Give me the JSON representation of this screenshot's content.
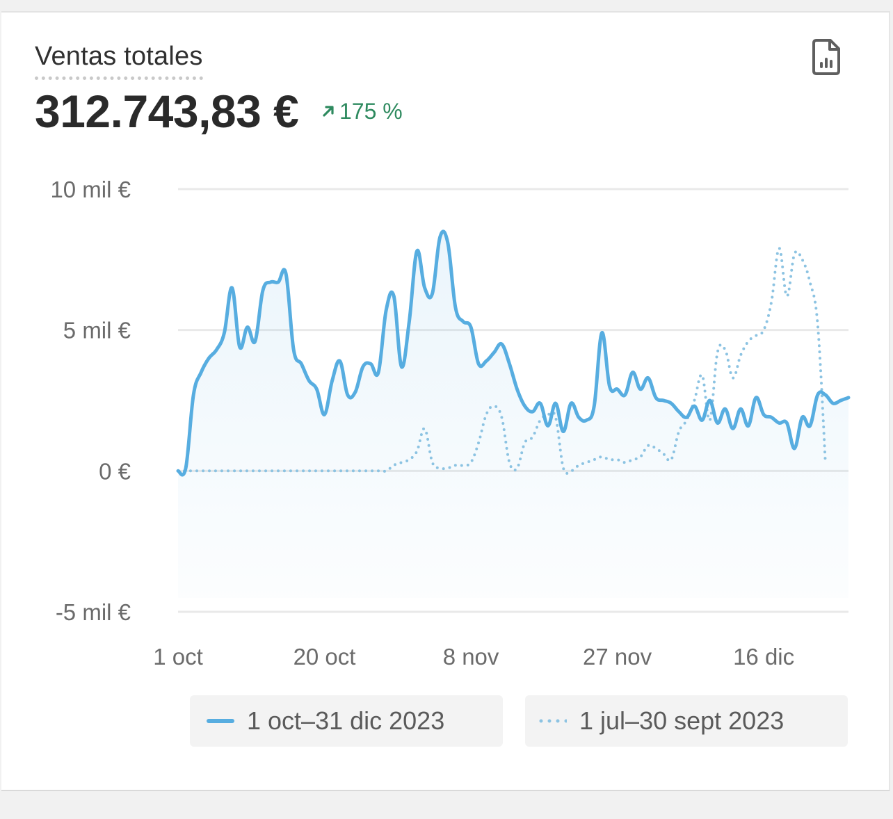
{
  "card": {
    "title": "Ventas totales",
    "total": "312.743,83 €",
    "change": "175 %",
    "change_color": "#2e8a5f",
    "report_icon": "file-chart-icon"
  },
  "colors": {
    "primary": "#57ade0",
    "comparison": "#8cc3e2",
    "grid": "#e9e9e9",
    "axis_text": "#6b6b6b"
  },
  "chart_data": {
    "type": "line",
    "y_ticks": [
      {
        "value": 10000,
        "label": "10 mil €"
      },
      {
        "value": 5000,
        "label": "5 mil €"
      },
      {
        "value": 0,
        "label": "0 €"
      },
      {
        "value": -5000,
        "label": "-5 mil €"
      }
    ],
    "ylim": [
      -5000,
      10000
    ],
    "x_ticks": [
      "1 oct",
      "20 oct",
      "8 nov",
      "27 nov",
      "16 dic"
    ],
    "grid": true,
    "legend_position": "bottom",
    "series": [
      {
        "name": "1 oct–31 dic 2023",
        "style": "solid",
        "values": [
          0,
          100,
          2700,
          3500,
          4000,
          4300,
          4900,
          6500,
          4400,
          5100,
          4600,
          6400,
          6700,
          6700,
          7000,
          4300,
          3800,
          3200,
          2900,
          2000,
          3200,
          3900,
          2700,
          2800,
          3700,
          3800,
          3500,
          5700,
          6200,
          3700,
          5300,
          7800,
          6500,
          6300,
          8300,
          8100,
          5800,
          5300,
          5100,
          3800,
          3900,
          4200,
          4500,
          3800,
          2900,
          2300,
          2100,
          2400,
          1600,
          2400,
          1400,
          2400,
          1900,
          1800,
          2300,
          4900,
          3000,
          2900,
          2700,
          3500,
          2900,
          3300,
          2600,
          2500,
          2400,
          2100,
          1900,
          2300,
          1800,
          2500,
          1700,
          2200,
          1500,
          2200,
          1600,
          2600,
          2000,
          1900,
          1700,
          1700,
          800,
          1900,
          1600,
          2700,
          2700,
          2400,
          2500,
          2600
        ]
      },
      {
        "name": "1 jul–30 sept 2023",
        "style": "dotted",
        "values": [
          0,
          0,
          0,
          0,
          0,
          0,
          0,
          0,
          0,
          0,
          0,
          0,
          0,
          0,
          0,
          0,
          0,
          0,
          0,
          0,
          0,
          0,
          0,
          0,
          0,
          0,
          0,
          0,
          200,
          300,
          400,
          700,
          1500,
          300,
          100,
          100,
          200,
          200,
          300,
          1000,
          2000,
          2300,
          1900,
          300,
          100,
          1000,
          1200,
          1800,
          2000,
          1900,
          100,
          0,
          200,
          300,
          400,
          500,
          400,
          400,
          300,
          400,
          500,
          900,
          800,
          600,
          400,
          1400,
          1800,
          2500,
          3400,
          1800,
          4200,
          4300,
          3300,
          4100,
          4600,
          4800,
          5000,
          6000,
          7900,
          6200,
          7700,
          7500,
          6700,
          5200,
          300
        ]
      }
    ]
  }
}
